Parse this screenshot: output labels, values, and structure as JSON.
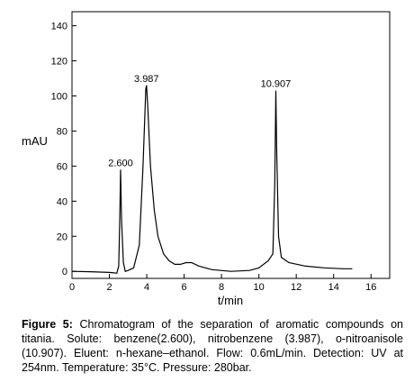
{
  "chart_data": {
    "type": "line",
    "xlabel": "t/min",
    "ylabel": "mAU",
    "xlim": [
      0,
      17
    ],
    "ylim": [
      -4,
      148
    ],
    "xticks": [
      0,
      2,
      4,
      6,
      8,
      10,
      12,
      14,
      16
    ],
    "yticks": [
      0,
      20,
      40,
      60,
      80,
      100,
      120,
      140
    ],
    "grid": false,
    "series": [
      {
        "points": [
          [
            0,
            0
          ],
          [
            1,
            -0.2
          ],
          [
            2,
            -0.6
          ],
          [
            2.4,
            -1
          ],
          [
            2.5,
            3
          ],
          [
            2.55,
            25
          ],
          [
            2.6,
            58
          ],
          [
            2.65,
            30
          ],
          [
            2.75,
            5
          ],
          [
            2.85,
            0
          ],
          [
            3.0,
            0.5
          ],
          [
            3.3,
            2
          ],
          [
            3.6,
            15
          ],
          [
            3.8,
            60
          ],
          [
            3.95,
            104
          ],
          [
            3.987,
            106
          ],
          [
            4.05,
            95
          ],
          [
            4.2,
            60
          ],
          [
            4.4,
            35
          ],
          [
            4.6,
            20
          ],
          [
            4.9,
            10
          ],
          [
            5.2,
            6
          ],
          [
            5.5,
            4
          ],
          [
            5.8,
            4
          ],
          [
            6.1,
            5
          ],
          [
            6.4,
            5
          ],
          [
            6.8,
            3
          ],
          [
            7.5,
            1
          ],
          [
            8.5,
            0
          ],
          [
            9.5,
            0.5
          ],
          [
            10.0,
            2
          ],
          [
            10.5,
            6
          ],
          [
            10.75,
            10
          ],
          [
            10.85,
            50
          ],
          [
            10.907,
            103
          ],
          [
            10.95,
            70
          ],
          [
            11.05,
            20
          ],
          [
            11.2,
            8
          ],
          [
            11.6,
            5
          ],
          [
            12.5,
            3
          ],
          [
            13.5,
            2
          ],
          [
            14.5,
            1.5
          ],
          [
            15,
            1.5
          ]
        ]
      }
    ],
    "annotations": [
      {
        "text": "2.600",
        "x": 2.6,
        "y": 58
      },
      {
        "text": "3.987",
        "x": 3.987,
        "y": 106
      },
      {
        "text": "10.907",
        "x": 10.907,
        "y": 103
      }
    ]
  },
  "caption": {
    "label": "Figure 5:",
    "text": " Chromatogram of the separation of aromatic compounds on titania. Solute: benzene(2.600), nitrobenzene (3.987), o-nitroanisole (10.907). Eluent: n-hexane–ethanol. Flow: 0.6mL/min. Detection: UV at 254nm. Temperature: 35°C. Pressure: 280bar."
  }
}
